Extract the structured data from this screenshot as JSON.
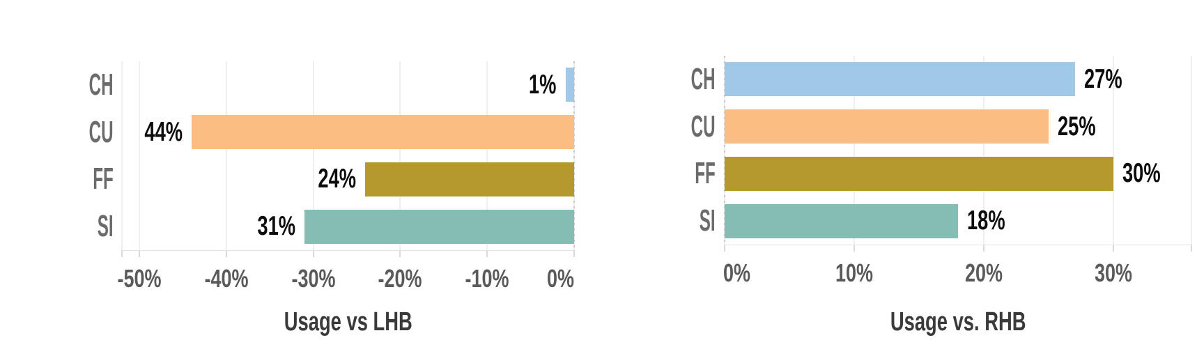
{
  "page": {
    "background_color": "#ffffff"
  },
  "chart_data": [
    {
      "type": "bar",
      "orientation": "horizontal",
      "title": "Usage vs LHB",
      "title_position": "below-x-axis",
      "categories": [
        "CH",
        "CU",
        "FF",
        "SI"
      ],
      "values": [
        -1,
        -44,
        -24,
        -31
      ],
      "value_labels": [
        "1%",
        "44%",
        "24%",
        "31%"
      ],
      "bar_colors": [
        "#a0c9e8",
        "#fcbe80",
        "#b5992e",
        "#85bdb5"
      ],
      "xlim": [
        -52,
        0
      ],
      "xticks": [
        -50,
        -40,
        -30,
        -20,
        -10,
        0
      ],
      "xtick_labels": [
        "-50%",
        "-40%",
        "-30%",
        "-20%",
        "-10%",
        "0%"
      ],
      "grid": true,
      "legend": false,
      "value_label_position": "outside-bar-end",
      "zero_line": "dashed"
    },
    {
      "type": "bar",
      "orientation": "horizontal",
      "title": "Usage vs. RHB",
      "title_position": "below-x-axis",
      "categories": [
        "CH",
        "CU",
        "FF",
        "SI"
      ],
      "values": [
        27,
        25,
        30,
        18
      ],
      "value_labels": [
        "27%",
        "25%",
        "30%",
        "18%"
      ],
      "bar_colors": [
        "#a0c9e8",
        "#fcbe80",
        "#b5992e",
        "#85bdb5"
      ],
      "xlim": [
        0,
        36
      ],
      "xticks": [
        0,
        10,
        20,
        30
      ],
      "xtick_labels": [
        "0%",
        "10%",
        "20%",
        "30%"
      ],
      "grid": true,
      "legend": false,
      "value_label_position": "outside-bar-end",
      "zero_line": "dashed"
    }
  ],
  "palette": {
    "category_label_color": "#6b6b6b",
    "tick_label_color": "#5a5a5a",
    "value_label_color": "#0d0d0d",
    "title_color": "#3a3a3a",
    "gridline_color": "#efefef",
    "axis_line_color": "#e3e3e3",
    "tick_mark_color": "#d9d9d9",
    "zero_line_color": "#c9c9c9"
  }
}
